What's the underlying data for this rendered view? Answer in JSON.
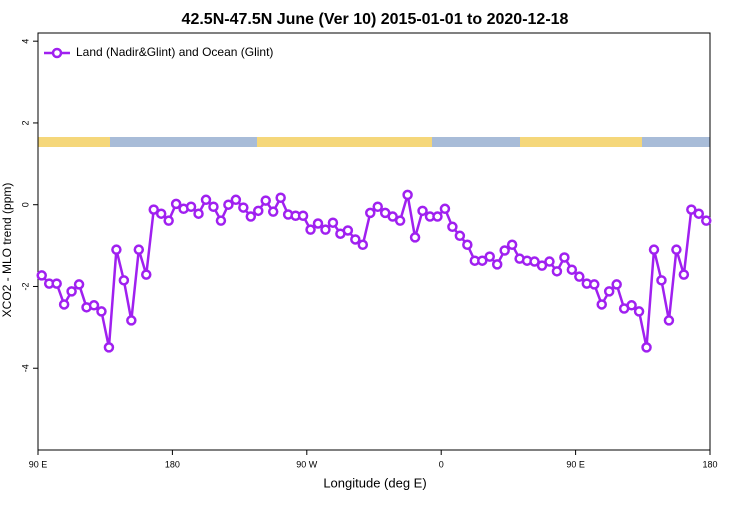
{
  "chart_data": {
    "type": "line",
    "title": "42.5N-47.5N June (Ver 10)   2015-01-01 to 2020-12-18",
    "x_label": "Longitude (deg E)",
    "y_label": "XCO2 - MLO trend (ppm)",
    "xlim": [
      90,
      540
    ],
    "xticks": [
      {
        "value": 90,
        "label": "90 E"
      },
      {
        "value": 180,
        "label": "180"
      },
      {
        "value": 270,
        "label": "90 W"
      },
      {
        "value": 360,
        "label": "0"
      },
      {
        "value": 450,
        "label": "90 E"
      },
      {
        "value": 540,
        "label": "180"
      }
    ],
    "ylim": [
      -6,
      4.2
    ],
    "yticks": [
      -4,
      -2,
      0,
      2,
      4
    ],
    "legend": "top-left",
    "x": [
      92.5,
      97.5,
      102.5,
      107.5,
      112.5,
      117.5,
      122.5,
      127.5,
      132.5,
      137.5,
      142.5,
      147.5,
      152.5,
      157.5,
      162.5,
      167.5,
      172.5,
      177.5,
      182.5,
      187.5,
      192.5,
      197.5,
      202.5,
      207.5,
      212.5,
      217.5,
      222.5,
      227.5,
      232.5,
      237.5,
      242.5,
      247.5,
      252.5,
      257.5,
      262.5,
      267.5,
      272.5,
      277.5,
      282.5,
      287.5,
      292.5,
      297.5,
      302.5,
      307.5,
      312.5,
      317.5,
      322.5,
      327.5,
      332.5,
      337.5,
      342.5,
      347.5,
      352.5,
      357.5,
      362.5,
      367.5,
      372.5,
      377.5,
      382.5,
      387.5,
      392.5,
      397.5,
      402.5,
      407.5,
      412.5,
      417.5,
      422.5,
      427.5,
      432.5,
      437.5,
      442.5,
      447.5,
      452.5,
      457.5,
      462.5,
      467.5,
      472.5,
      477.5,
      482.5,
      487.5,
      492.5,
      497.5,
      502.5,
      507.5,
      512.5,
      517.5,
      522.5,
      527.5,
      532.5,
      537.5
    ],
    "series": [
      {
        "name": "Land (Nadir&Glint) and Ocean (Glint)",
        "color": "#a020f0",
        "values": [
          -1.73,
          -1.93,
          -1.93,
          -2.44,
          -2.12,
          -1.95,
          -2.51,
          -2.46,
          -2.61,
          -3.49,
          -1.1,
          -1.85,
          -2.83,
          -1.1,
          -1.71,
          -0.12,
          -0.22,
          -0.39,
          0.02,
          -0.1,
          -0.05,
          -0.22,
          0.12,
          -0.05,
          -0.39,
          0.0,
          0.12,
          -0.07,
          -0.29,
          -0.15,
          0.1,
          -0.17,
          0.17,
          -0.24,
          -0.27,
          -0.27,
          -0.61,
          -0.46,
          -0.61,
          -0.44,
          -0.71,
          -0.63,
          -0.85,
          -0.98,
          -0.2,
          -0.05,
          -0.2,
          -0.29,
          -0.39,
          0.24,
          -0.8,
          -0.15,
          -0.29,
          -0.29,
          -0.1,
          -0.54,
          -0.76,
          -0.98,
          -1.37,
          -1.37,
          -1.27,
          -1.46,
          -1.12,
          -0.98,
          -1.32,
          -1.37,
          -1.39,
          -1.49,
          -1.39,
          -1.63,
          -1.29,
          -1.59,
          -1.76,
          -1.93,
          -1.95,
          -2.44,
          -2.12,
          -1.95,
          -2.54,
          -2.46,
          -2.61,
          -3.49,
          -1.1,
          -1.85,
          -2.83,
          -1.1,
          -1.71,
          -0.12,
          -0.22,
          -0.39
        ]
      }
    ]
  }
}
